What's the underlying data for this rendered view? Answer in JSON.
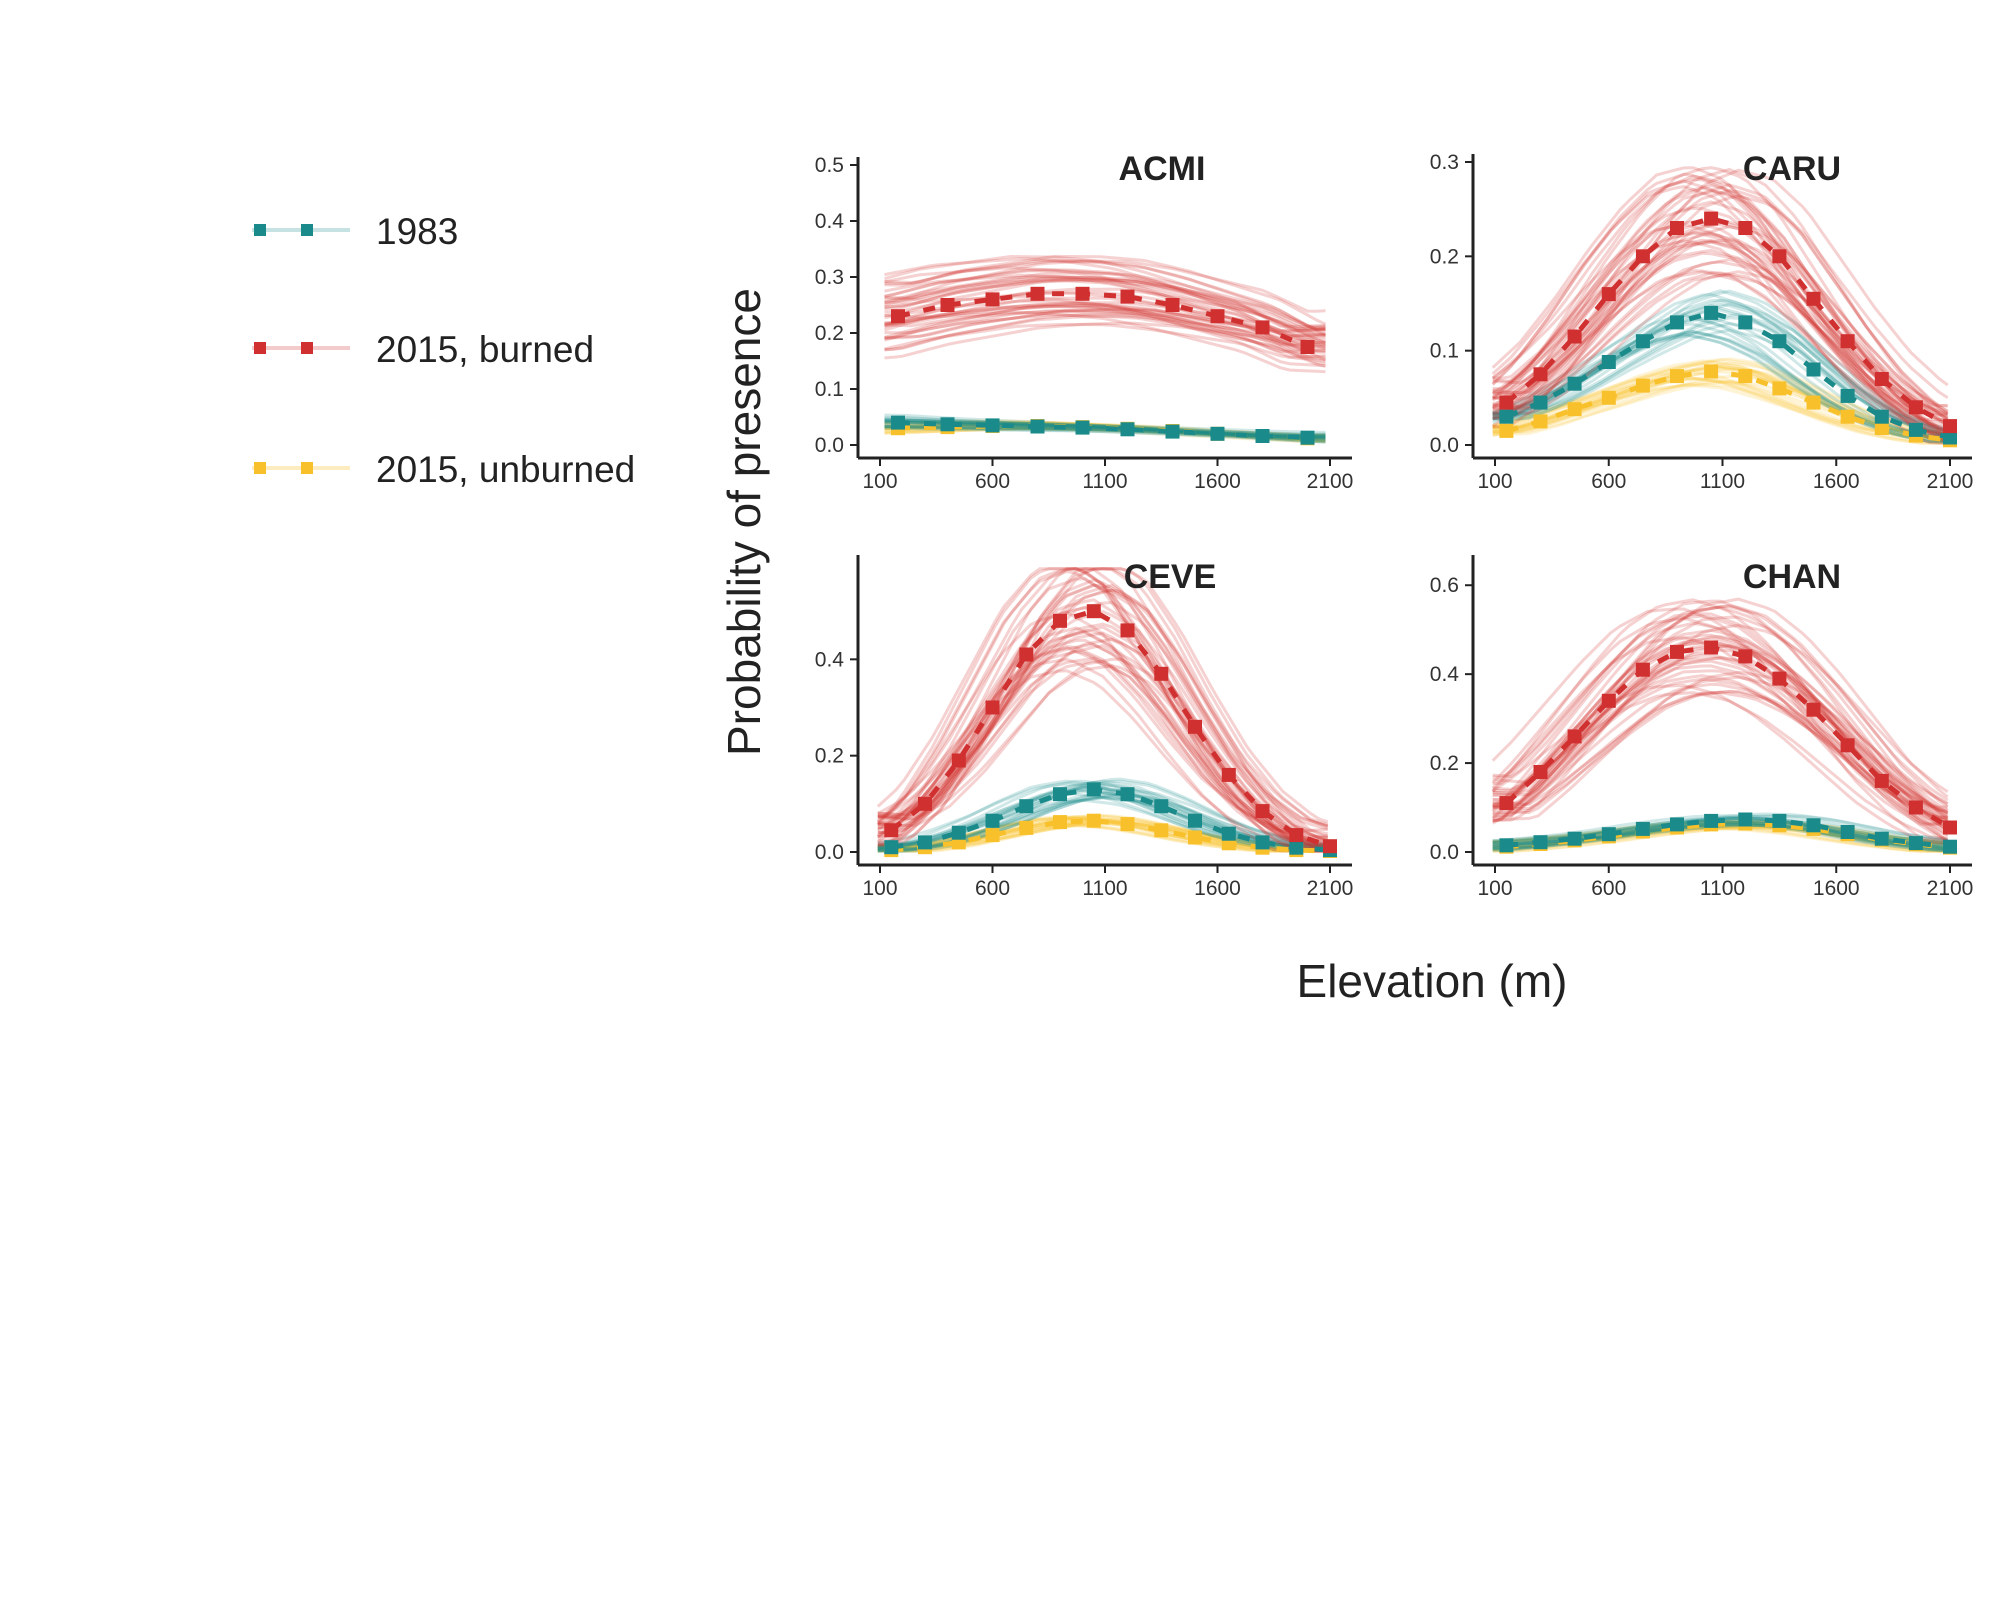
{
  "legend": {
    "items": [
      {
        "label": "1983",
        "color": "#1a8a8a"
      },
      {
        "label": "2015, burned",
        "color": "#d0302f"
      },
      {
        "label": "2015, unburned",
        "color": "#f8c12c"
      }
    ]
  },
  "axes": {
    "ylabel": "Probability of presence",
    "xlabel": "Elevation (m)"
  },
  "chart_data": [
    {
      "type": "line",
      "title": "ACMI",
      "xlim": [
        100,
        2100
      ],
      "xticks": [
        100,
        600,
        1100,
        1600,
        2100
      ],
      "ylim": [
        0,
        0.5
      ],
      "yticks": [
        0.0,
        0.1,
        0.2,
        0.3,
        0.4,
        0.5
      ],
      "yticklabels": [
        "0.0",
        "0.1",
        "0.2",
        "0.3",
        "0.4",
        "0.5"
      ],
      "x": [
        180,
        400,
        600,
        800,
        1000,
        1200,
        1400,
        1600,
        1800,
        2000
      ],
      "series": [
        {
          "name": "1983",
          "values": [
            0.04,
            0.037,
            0.035,
            0.033,
            0.031,
            0.028,
            0.024,
            0.02,
            0.016,
            0.013
          ]
        },
        {
          "name": "2015, burned",
          "values": [
            0.23,
            0.25,
            0.26,
            0.27,
            0.27,
            0.265,
            0.25,
            0.23,
            0.21,
            0.175
          ]
        },
        {
          "name": "2015, unburned",
          "values": [
            0.03,
            0.032,
            0.034,
            0.034,
            0.032,
            0.029,
            0.025,
            0.02,
            0.016,
            0.012
          ]
        }
      ]
    },
    {
      "type": "line",
      "title": "CARU",
      "xlim": [
        100,
        2100
      ],
      "xticks": [
        100,
        600,
        1100,
        1600,
        2100
      ],
      "ylim": [
        0,
        0.3
      ],
      "yticks": [
        0.0,
        0.1,
        0.2,
        0.3
      ],
      "yticklabels": [
        "0.0",
        "0.1",
        "0.2",
        "0.3"
      ],
      "x": [
        150,
        300,
        450,
        600,
        750,
        900,
        1050,
        1200,
        1350,
        1500,
        1650,
        1800,
        1950,
        2100
      ],
      "series": [
        {
          "name": "1983",
          "values": [
            0.03,
            0.045,
            0.065,
            0.088,
            0.11,
            0.13,
            0.14,
            0.13,
            0.11,
            0.08,
            0.052,
            0.03,
            0.016,
            0.008
          ]
        },
        {
          "name": "2015, burned",
          "values": [
            0.045,
            0.075,
            0.115,
            0.16,
            0.2,
            0.23,
            0.24,
            0.23,
            0.2,
            0.155,
            0.11,
            0.07,
            0.04,
            0.02
          ]
        },
        {
          "name": "2015, unburned",
          "values": [
            0.015,
            0.025,
            0.038,
            0.05,
            0.063,
            0.073,
            0.078,
            0.073,
            0.06,
            0.045,
            0.03,
            0.018,
            0.01,
            0.005
          ]
        }
      ]
    },
    {
      "type": "line",
      "title": "CEVE",
      "xlim": [
        100,
        2100
      ],
      "xticks": [
        100,
        600,
        1100,
        1600,
        2100
      ],
      "ylim": [
        0,
        0.6
      ],
      "yticks": [
        0.0,
        0.2,
        0.4
      ],
      "yticklabels": [
        "0.0",
        "0.2",
        "0.4"
      ],
      "x": [
        150,
        300,
        450,
        600,
        750,
        900,
        1050,
        1200,
        1350,
        1500,
        1650,
        1800,
        1950,
        2100
      ],
      "series": [
        {
          "name": "1983",
          "values": [
            0.01,
            0.02,
            0.04,
            0.065,
            0.095,
            0.12,
            0.13,
            0.12,
            0.095,
            0.065,
            0.038,
            0.02,
            0.009,
            0.004
          ]
        },
        {
          "name": "2015, burned",
          "values": [
            0.045,
            0.1,
            0.19,
            0.3,
            0.41,
            0.48,
            0.5,
            0.46,
            0.37,
            0.26,
            0.16,
            0.085,
            0.035,
            0.012
          ]
        },
        {
          "name": "2015, unburned",
          "values": [
            0.004,
            0.01,
            0.02,
            0.035,
            0.05,
            0.062,
            0.065,
            0.058,
            0.045,
            0.03,
            0.018,
            0.009,
            0.004,
            0.002
          ]
        }
      ]
    },
    {
      "type": "line",
      "title": "CHAN",
      "xlim": [
        100,
        2100
      ],
      "xticks": [
        100,
        600,
        1100,
        1600,
        2100
      ],
      "ylim": [
        0,
        0.65
      ],
      "yticks": [
        0.0,
        0.2,
        0.4,
        0.6
      ],
      "yticklabels": [
        "0.0",
        "0.2",
        "0.4",
        "0.6"
      ],
      "x": [
        150,
        300,
        450,
        600,
        750,
        900,
        1050,
        1200,
        1350,
        1500,
        1650,
        1800,
        1950,
        2100
      ],
      "series": [
        {
          "name": "1983",
          "values": [
            0.015,
            0.022,
            0.03,
            0.04,
            0.052,
            0.062,
            0.07,
            0.073,
            0.07,
            0.06,
            0.045,
            0.03,
            0.02,
            0.012
          ]
        },
        {
          "name": "2015, burned",
          "values": [
            0.11,
            0.18,
            0.26,
            0.34,
            0.41,
            0.45,
            0.46,
            0.44,
            0.39,
            0.32,
            0.24,
            0.16,
            0.1,
            0.055
          ]
        },
        {
          "name": "2015, unburned",
          "values": [
            0.012,
            0.018,
            0.026,
            0.035,
            0.046,
            0.055,
            0.062,
            0.064,
            0.06,
            0.052,
            0.04,
            0.028,
            0.018,
            0.01
          ]
        }
      ]
    }
  ]
}
